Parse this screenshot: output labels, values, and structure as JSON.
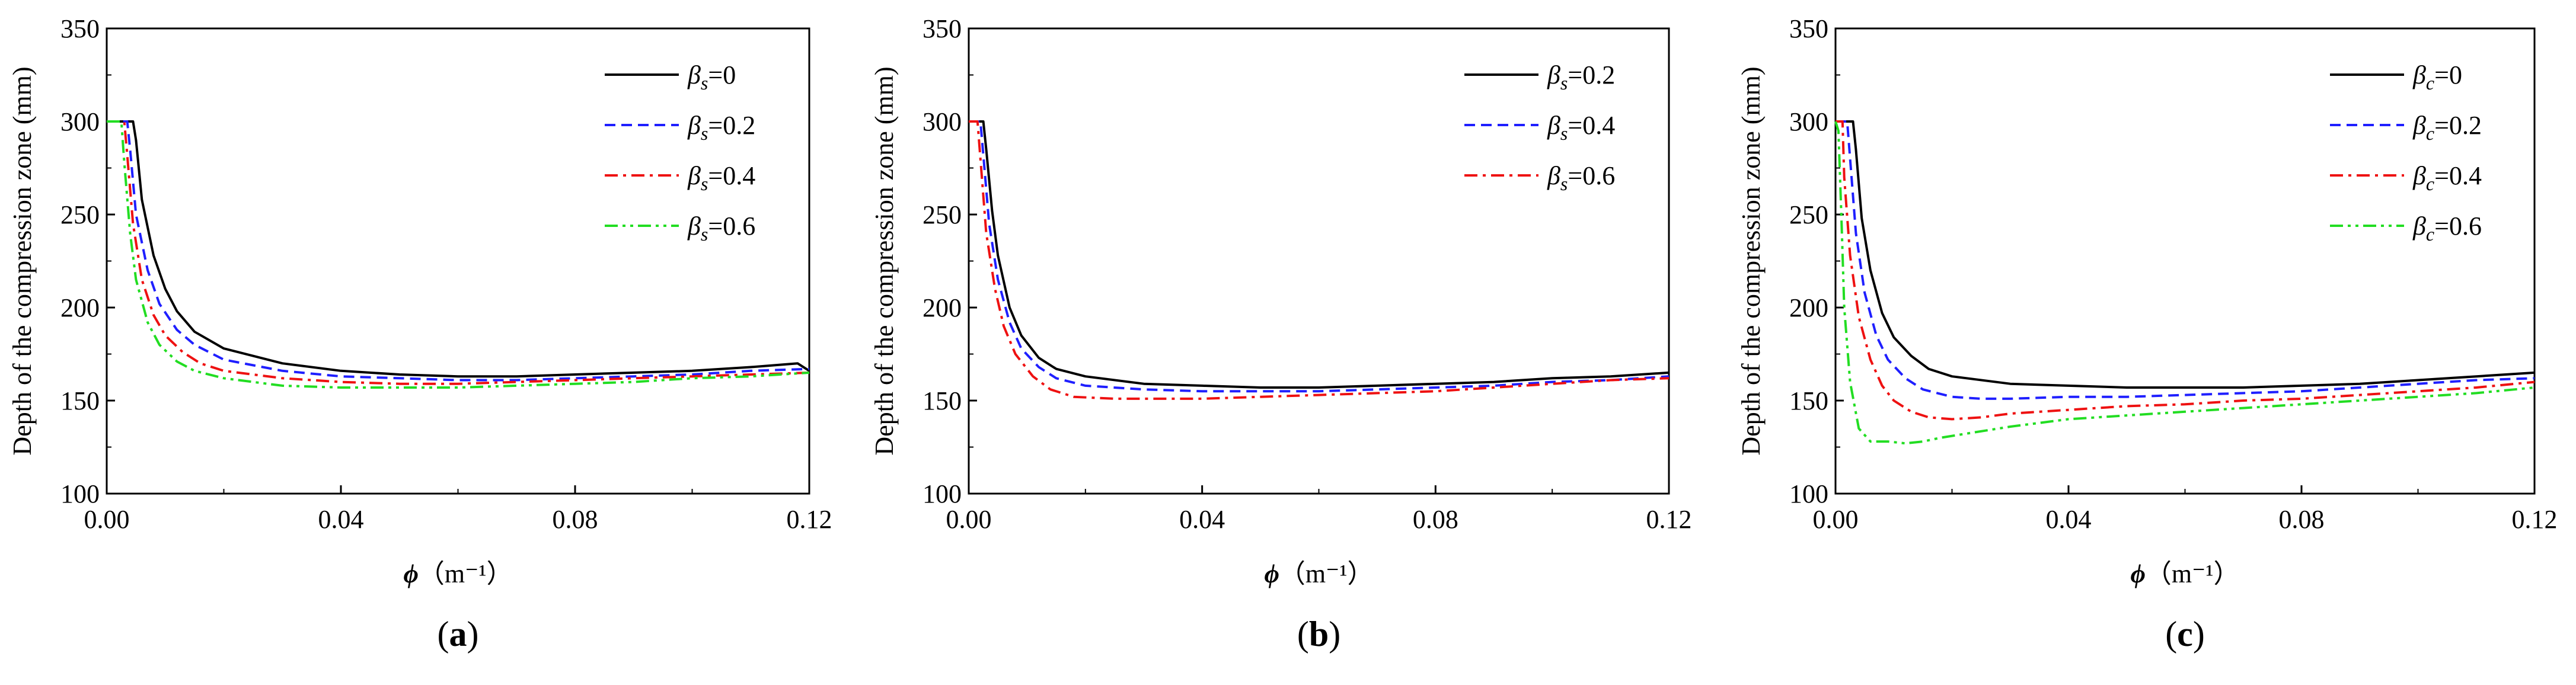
{
  "chart_data": [
    {
      "type": "line",
      "panel_label": {
        "open": "(",
        "letter": "a",
        "close": ")"
      },
      "xlabel": {
        "symbol": "ϕ",
        "unit": "（m⁻¹）"
      },
      "ylabel": "Depth of the compression zone (mm)",
      "xlim": [
        0,
        0.12
      ],
      "ylim": [
        100,
        350
      ],
      "xticks": [
        "0.00",
        "0.04",
        "0.08",
        "0.12"
      ],
      "yticks": [
        "100",
        "150",
        "200",
        "250",
        "300",
        "350"
      ],
      "legend_position": "top-right",
      "series": [
        {
          "name": "βs=0",
          "sym": "β",
          "sub": "s",
          "value_text": "=0",
          "color": "#000000",
          "dash": "solid",
          "x": [
            0,
            0.0045,
            0.005,
            0.006,
            0.008,
            0.01,
            0.012,
            0.015,
            0.02,
            0.03,
            0.04,
            0.05,
            0.06,
            0.07,
            0.08,
            0.09,
            0.1,
            0.11,
            0.118,
            0.12
          ],
          "y": [
            300,
            300,
            290,
            258,
            228,
            210,
            198,
            187,
            178,
            170,
            166,
            164,
            163,
            163,
            164,
            165,
            166,
            168,
            170,
            166
          ]
        },
        {
          "name": "βs=0.2",
          "sym": "β",
          "sub": "s",
          "value_text": "=0.2",
          "color": "#1f1fff",
          "dash": "dashed",
          "x": [
            0,
            0.0035,
            0.004,
            0.005,
            0.007,
            0.009,
            0.012,
            0.015,
            0.02,
            0.03,
            0.04,
            0.05,
            0.06,
            0.07,
            0.08,
            0.09,
            0.1,
            0.11,
            0.12
          ],
          "y": [
            300,
            300,
            285,
            250,
            220,
            202,
            188,
            180,
            172,
            166,
            163,
            162,
            161,
            161,
            162,
            163,
            164,
            166,
            167
          ]
        },
        {
          "name": "βs=0.4",
          "sym": "β",
          "sub": "s",
          "value_text": "=0.4",
          "color": "#ee1111",
          "dash": "dashdot",
          "x": [
            0,
            0.003,
            0.0035,
            0.0045,
            0.006,
            0.008,
            0.01,
            0.013,
            0.016,
            0.02,
            0.03,
            0.04,
            0.05,
            0.06,
            0.07,
            0.08,
            0.09,
            0.1,
            0.11,
            0.12
          ],
          "y": [
            300,
            300,
            282,
            245,
            215,
            196,
            185,
            176,
            170,
            166,
            162,
            160,
            159,
            159,
            160,
            161,
            162,
            163,
            164,
            165
          ]
        },
        {
          "name": "βs=0.6",
          "sym": "β",
          "sub": "s",
          "value_text": "=0.6",
          "color": "#22dd22",
          "dash": "dashdotdot",
          "x": [
            0,
            0.0025,
            0.003,
            0.004,
            0.005,
            0.007,
            0.009,
            0.012,
            0.015,
            0.02,
            0.03,
            0.04,
            0.05,
            0.06,
            0.07,
            0.08,
            0.09,
            0.1,
            0.11,
            0.12
          ],
          "y": [
            300,
            300,
            278,
            240,
            215,
            192,
            180,
            171,
            166,
            162,
            158,
            157,
            157,
            157,
            158,
            159,
            160,
            162,
            163,
            165
          ]
        }
      ]
    },
    {
      "type": "line",
      "panel_label": {
        "open": "(",
        "letter": "b",
        "close": ")"
      },
      "xlabel": {
        "symbol": "ϕ",
        "unit": "（m⁻¹）"
      },
      "ylabel": "Depth of the compression zone (mm)",
      "xlim": [
        0,
        0.12
      ],
      "ylim": [
        100,
        350
      ],
      "xticks": [
        "0.00",
        "0.04",
        "0.08",
        "0.12"
      ],
      "yticks": [
        "100",
        "150",
        "200",
        "250",
        "300",
        "350"
      ],
      "legend_position": "top-right",
      "series": [
        {
          "name": "βs=0.2",
          "sym": "β",
          "sub": "s",
          "value_text": "=0.2",
          "color": "#000000",
          "dash": "solid",
          "x": [
            0,
            0.0025,
            0.003,
            0.004,
            0.005,
            0.007,
            0.009,
            0.012,
            0.015,
            0.02,
            0.03,
            0.04,
            0.05,
            0.06,
            0.07,
            0.08,
            0.09,
            0.1,
            0.11,
            0.12
          ],
          "y": [
            300,
            300,
            285,
            252,
            228,
            200,
            185,
            173,
            167,
            163,
            159,
            158,
            157,
            157,
            158,
            159,
            160,
            162,
            163,
            165
          ]
        },
        {
          "name": "βs=0.4",
          "sym": "β",
          "sub": "s",
          "value_text": "=0.4",
          "color": "#1f1fff",
          "dash": "dashed",
          "x": [
            0,
            0.002,
            0.0025,
            0.0035,
            0.005,
            0.007,
            0.009,
            0.012,
            0.015,
            0.02,
            0.03,
            0.04,
            0.05,
            0.06,
            0.07,
            0.08,
            0.09,
            0.1,
            0.11,
            0.12
          ],
          "y": [
            300,
            300,
            282,
            245,
            215,
            192,
            178,
            168,
            162,
            158,
            156,
            155,
            155,
            155,
            156,
            157,
            158,
            160,
            161,
            163
          ]
        },
        {
          "name": "βs=0.6",
          "sym": "β",
          "sub": "s",
          "value_text": "=0.6",
          "color": "#ee1111",
          "dash": "dashdot",
          "x": [
            0,
            0.0015,
            0.002,
            0.003,
            0.0045,
            0.006,
            0.008,
            0.011,
            0.014,
            0.018,
            0.025,
            0.03,
            0.04,
            0.05,
            0.06,
            0.07,
            0.08,
            0.09,
            0.1,
            0.11,
            0.12
          ],
          "y": [
            300,
            300,
            280,
            240,
            210,
            190,
            175,
            163,
            156,
            152,
            151,
            151,
            151,
            152,
            153,
            154,
            155,
            157,
            159,
            161,
            162
          ]
        }
      ]
    },
    {
      "type": "line",
      "panel_label": {
        "open": "(",
        "letter": "c",
        "close": ")"
      },
      "xlabel": {
        "symbol": "ϕ",
        "unit": "（m⁻¹）"
      },
      "ylabel": "Depth of the compression zone (mm)",
      "xlim": [
        0,
        0.12
      ],
      "ylim": [
        100,
        350
      ],
      "xticks": [
        "0.00",
        "0.04",
        "0.08",
        "0.12"
      ],
      "yticks": [
        "100",
        "150",
        "200",
        "250",
        "300",
        "350"
      ],
      "legend_position": "top-right",
      "series": [
        {
          "name": "βc=0",
          "sym": "β",
          "sub": "c",
          "value_text": "=0",
          "color": "#000000",
          "dash": "solid",
          "x": [
            0,
            0.003,
            0.0035,
            0.0045,
            0.006,
            0.008,
            0.01,
            0.013,
            0.016,
            0.02,
            0.03,
            0.04,
            0.05,
            0.06,
            0.07,
            0.08,
            0.09,
            0.1,
            0.11,
            0.12
          ],
          "y": [
            300,
            300,
            285,
            248,
            220,
            197,
            184,
            174,
            167,
            163,
            159,
            158,
            157,
            157,
            157,
            158,
            159,
            161,
            163,
            165
          ]
        },
        {
          "name": "βc=0.2",
          "sym": "β",
          "sub": "c",
          "value_text": "=0.2",
          "color": "#1f1fff",
          "dash": "dashed",
          "x": [
            0,
            0.002,
            0.0025,
            0.0035,
            0.005,
            0.007,
            0.009,
            0.012,
            0.015,
            0.02,
            0.025,
            0.03,
            0.04,
            0.05,
            0.06,
            0.07,
            0.08,
            0.09,
            0.1,
            0.11,
            0.12
          ],
          "y": [
            300,
            300,
            280,
            240,
            208,
            185,
            172,
            162,
            156,
            152,
            151,
            151,
            152,
            152,
            153,
            154,
            155,
            157,
            159,
            161,
            162
          ]
        },
        {
          "name": "βc=0.4",
          "sym": "β",
          "sub": "c",
          "value_text": "=0.4",
          "color": "#ee1111",
          "dash": "dashdot",
          "x": [
            0,
            0.0012,
            0.0015,
            0.0025,
            0.004,
            0.006,
            0.008,
            0.01,
            0.013,
            0.016,
            0.02,
            0.025,
            0.03,
            0.04,
            0.05,
            0.06,
            0.07,
            0.08,
            0.09,
            0.1,
            0.11,
            0.12
          ],
          "y": [
            300,
            300,
            270,
            228,
            195,
            172,
            158,
            150,
            144,
            141,
            140,
            141,
            143,
            145,
            147,
            148,
            150,
            151,
            153,
            155,
            157,
            160
          ]
        },
        {
          "name": "βc=0.6",
          "sym": "β",
          "sub": "c",
          "value_text": "=0.6",
          "color": "#22dd22",
          "dash": "dashdotdot",
          "x": [
            0,
            0.0005,
            0.001,
            0.0015,
            0.0025,
            0.004,
            0.006,
            0.009,
            0.012,
            0.015,
            0.018,
            0.022,
            0.03,
            0.04,
            0.05,
            0.06,
            0.07,
            0.08,
            0.09,
            0.1,
            0.11,
            0.12
          ],
          "y": [
            300,
            295,
            250,
            200,
            160,
            135,
            128,
            128,
            127,
            128,
            130,
            132,
            136,
            140,
            142,
            144,
            146,
            148,
            150,
            152,
            154,
            157
          ]
        }
      ]
    }
  ]
}
